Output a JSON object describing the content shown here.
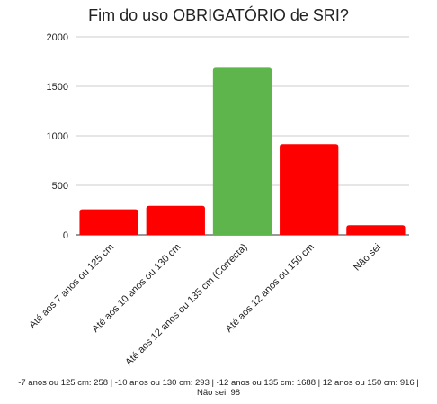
{
  "chart_data": {
    "type": "bar",
    "title": "Fim do uso OBRIGATÓRIO de SRI?",
    "categories": [
      "Até aos 7 anos ou 125 cm",
      "Até aos 10 anos ou 130 cm",
      "Até aos 12 anos ou 135 cm (Correcta)",
      "Até aos 12 anos ou 150 cm",
      "Não sei"
    ],
    "values": [
      258,
      293,
      1688,
      916,
      98
    ],
    "bar_colors": [
      "#ff0000",
      "#ff0000",
      "#5db54b",
      "#ff0000",
      "#ff0000"
    ],
    "ylim": [
      0,
      2000
    ],
    "yticks": [
      "0",
      "500",
      "1000",
      "1500",
      "2000"
    ],
    "ytick_values": [
      0,
      500,
      1000,
      1500,
      2000
    ],
    "grid": true,
    "xlabel": "",
    "ylabel": "",
    "caption": "-7 anos ou 125 cm: 258 | -10 anos ou 130 cm: 293 | -12 anos ou 135 cm: 1688 | 12 anos ou 150 cm: 916 | Não sei: 98"
  }
}
